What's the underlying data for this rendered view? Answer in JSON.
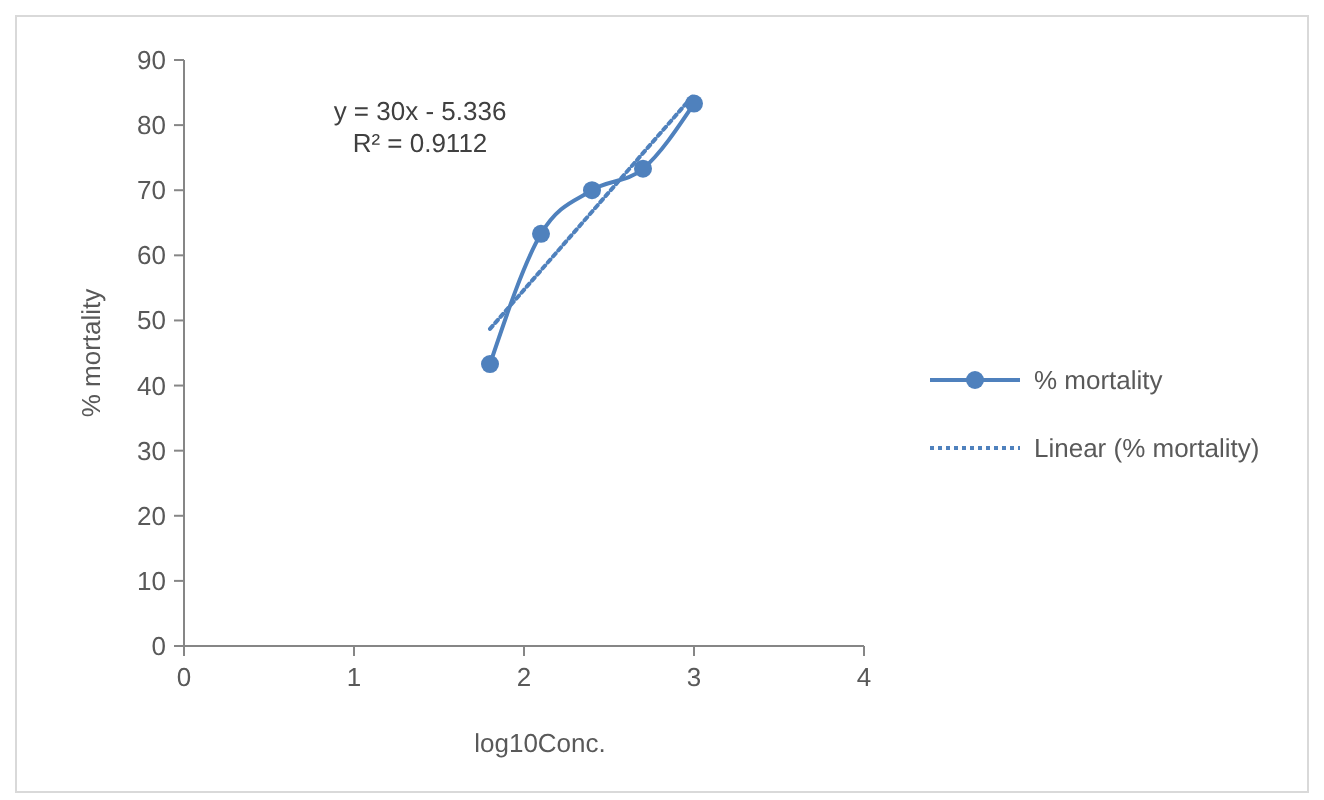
{
  "chart_data": {
    "type": "line",
    "xlabel": "log10Conc.",
    "ylabel": "% mortality",
    "xlim": [
      0,
      4
    ],
    "xticks": [
      0,
      1,
      2,
      3,
      4
    ],
    "ylim": [
      0,
      90
    ],
    "yticks": [
      0,
      10,
      20,
      30,
      40,
      50,
      60,
      70,
      80,
      90
    ],
    "grid": false,
    "legend": "right",
    "series": [
      {
        "name": "% mortality",
        "color": "#4f81bd",
        "x": [
          1.8,
          2.1,
          2.4,
          2.7,
          3.0
        ],
        "values": [
          43.3,
          63.3,
          70,
          73.3,
          83.3
        ],
        "marker": "circle",
        "line_style": "solid"
      },
      {
        "name": "Linear (% mortality)",
        "color": "#4f81bd",
        "x": [
          1.8,
          3.0
        ],
        "values": [
          48.7,
          84.7
        ],
        "marker": "none",
        "line_style": "dotted"
      }
    ],
    "annotations": [
      "y = 30x - 5.336",
      "R² = 0.9112"
    ]
  }
}
